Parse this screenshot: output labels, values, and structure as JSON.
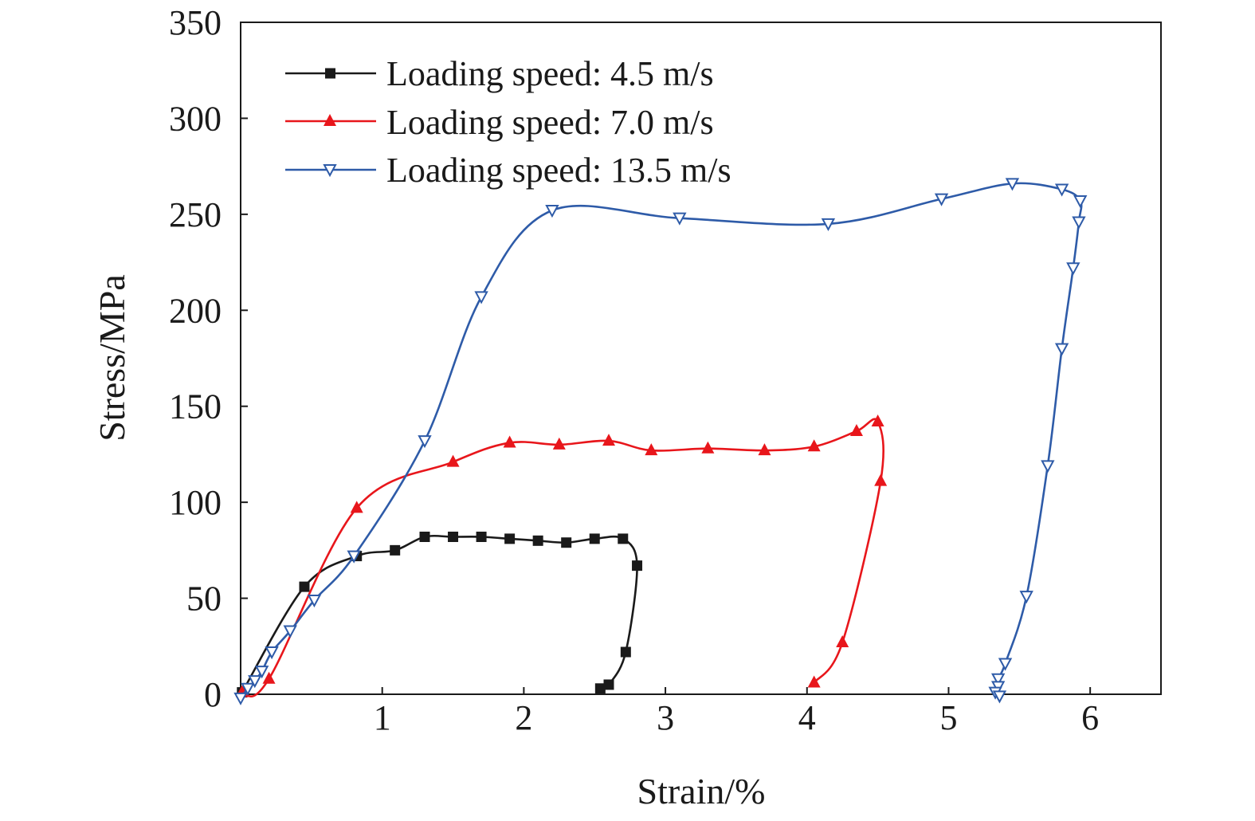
{
  "chart_data": {
    "type": "line",
    "title": "",
    "xlabel": "Strain/%",
    "ylabel": "Stress/MPa",
    "xlim": [
      0,
      6.5
    ],
    "ylim": [
      0,
      350
    ],
    "xticks": [
      1,
      2,
      3,
      4,
      5,
      6
    ],
    "yticks": [
      0,
      50,
      100,
      150,
      200,
      250,
      300,
      350
    ],
    "grid": false,
    "legend_position": "top-left",
    "series": [
      {
        "name": "Loading speed: 4.5 m/s",
        "color": "#1a1a1a",
        "marker": "square",
        "x": [
          0.01,
          0.45,
          0.82,
          1.09,
          1.3,
          1.5,
          1.7,
          1.9,
          2.1,
          2.3,
          2.5,
          2.7,
          2.8,
          2.72,
          2.6,
          2.54
        ],
        "y": [
          1,
          56,
          72,
          75,
          82,
          82,
          82,
          81,
          80,
          79,
          81,
          81,
          67,
          22,
          5,
          3
        ]
      },
      {
        "name": "Loading speed: 7.0 m/s",
        "color": "#e8161b",
        "marker": "triangle-up",
        "x": [
          0.01,
          0.2,
          0.82,
          1.5,
          1.9,
          2.25,
          2.6,
          2.9,
          3.3,
          3.7,
          4.05,
          4.35,
          4.5,
          4.52,
          4.25,
          4.05
        ],
        "y": [
          1,
          8,
          97,
          121,
          131,
          130,
          132,
          127,
          128,
          127,
          129,
          137,
          142,
          111,
          27,
          6
        ]
      },
      {
        "name": "Loading speed: 13.5 m/s",
        "color": "#2e5ba8",
        "marker": "triangle-down",
        "x": [
          0.0,
          0.05,
          0.1,
          0.15,
          0.22,
          0.35,
          0.52,
          0.8,
          1.3,
          1.7,
          2.2,
          3.1,
          4.15,
          4.95,
          5.45,
          5.8,
          5.93,
          5.92,
          5.88,
          5.8,
          5.7,
          5.55,
          5.4,
          5.35,
          5.35,
          5.33,
          5.36
        ],
        "y": [
          -2,
          3,
          7,
          12,
          22,
          33,
          49,
          72,
          132,
          207,
          252,
          248,
          245,
          258,
          266,
          263,
          257,
          246,
          222,
          180,
          119,
          51,
          16,
          8,
          4,
          1,
          -1
        ]
      }
    ]
  }
}
